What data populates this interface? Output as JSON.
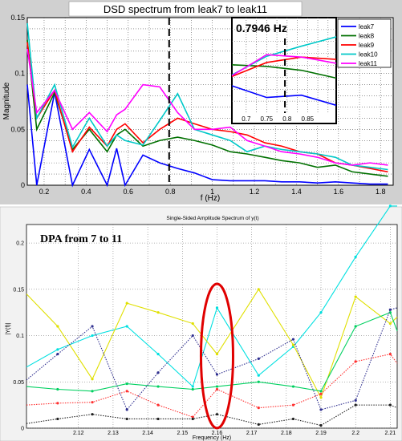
{
  "chart_data": [
    {
      "type": "line",
      "title": "DSD spectrum from leak7 to leak11",
      "xlabel": "f (Hz)",
      "ylabel": "Magnitude",
      "xlim": [
        0.12,
        1.86
      ],
      "ylim": [
        0,
        0.15
      ],
      "xticks": [
        "0.2",
        "0.4",
        "0.6",
        "0.8",
        "1",
        "1.2",
        "1.4",
        "1.6",
        "1.8"
      ],
      "yticks": [
        "0",
        "0.05",
        "0.1",
        "0.15"
      ],
      "grid": true,
      "legend": "top-right",
      "vline_x": 0.7946,
      "x": [
        0.12,
        0.165,
        0.25,
        0.335,
        0.415,
        0.5,
        0.545,
        0.585,
        0.67,
        0.75,
        0.835,
        0.915,
        1.0,
        1.085,
        1.165,
        1.25,
        1.33,
        1.415,
        1.5,
        1.585,
        1.665,
        1.75,
        1.835
      ],
      "series": [
        {
          "name": "leak7",
          "color": "#0000ff",
          "values": [
            0.09,
            0.0,
            0.083,
            0.0,
            0.032,
            0.0,
            0.033,
            0.0,
            0.027,
            0.02,
            0.015,
            0.011,
            0.005,
            0.004,
            0.004,
            0.004,
            0.003,
            0.003,
            0.002,
            0.003,
            0.002,
            0.001,
            0.001
          ]
        },
        {
          "name": "leak8",
          "color": "#007000",
          "values": [
            0.13,
            0.05,
            0.083,
            0.032,
            0.05,
            0.03,
            0.045,
            0.05,
            0.035,
            0.04,
            0.043,
            0.04,
            0.036,
            0.03,
            0.028,
            0.025,
            0.022,
            0.02,
            0.016,
            0.018,
            0.012,
            0.01,
            0.008
          ]
        },
        {
          "name": "leak9",
          "color": "#ff0000",
          "values": [
            0.128,
            0.06,
            0.085,
            0.03,
            0.052,
            0.035,
            0.05,
            0.055,
            0.038,
            0.05,
            0.06,
            0.055,
            0.05,
            0.048,
            0.045,
            0.038,
            0.035,
            0.03,
            0.028,
            0.02,
            0.018,
            0.015,
            0.012
          ]
        },
        {
          "name": "leak10",
          "color": "#00c8c8",
          "values": [
            0.145,
            0.06,
            0.09,
            0.034,
            0.06,
            0.035,
            0.045,
            0.04,
            0.036,
            0.058,
            0.082,
            0.05,
            0.045,
            0.04,
            0.03,
            0.035,
            0.032,
            0.03,
            0.028,
            0.025,
            0.018,
            0.016,
            0.014
          ]
        },
        {
          "name": "leak11",
          "color": "#ff00ff",
          "values": [
            0.122,
            0.065,
            0.085,
            0.05,
            0.065,
            0.048,
            0.063,
            0.068,
            0.09,
            0.088,
            0.065,
            0.05,
            0.05,
            0.052,
            0.04,
            0.035,
            0.03,
            0.028,
            0.025,
            0.02,
            0.018,
            0.02,
            0.018
          ]
        }
      ],
      "inset": {
        "label": "0.7946 Hz",
        "xlim": [
          0.665,
          0.92
        ],
        "xticks": [
          "0.7",
          "0.75",
          "0.8",
          "0.85"
        ],
        "vline_x": 0.7946,
        "x": [
          0.665,
          0.75,
          0.835,
          0.92
        ],
        "series": [
          {
            "name": "leak7",
            "color": "#0000ff",
            "values": [
              0.35,
              0.2,
              0.23,
              0.1
            ]
          },
          {
            "name": "leak8",
            "color": "#007000",
            "values": [
              0.62,
              0.6,
              0.55,
              0.45
            ]
          },
          {
            "name": "leak9",
            "color": "#ff0000",
            "values": [
              0.47,
              0.65,
              0.72,
              0.69
            ]
          },
          {
            "name": "leak10",
            "color": "#00c8c8",
            "values": [
              0.49,
              0.73,
              0.86,
              0.98
            ]
          },
          {
            "name": "leak11",
            "color": "#ff00ff",
            "values": [
              0.48,
              0.75,
              0.72,
              0.64
            ]
          }
        ]
      }
    },
    {
      "type": "line",
      "title": "Single-Sided Amplitude Spectrum of y(t)",
      "xlabel": "Frequency (Hz)",
      "ylabel": "|Y(f)|",
      "annotation": "DPA from 7 to 11",
      "xlim": [
        2.105,
        2.212
      ],
      "ylim": [
        0,
        0.22
      ],
      "xticks": [
        "2.12",
        "2.13",
        "2.14",
        "2.15",
        "2.16",
        "2.17",
        "2.18",
        "2.19",
        "2.2",
        "2.21"
      ],
      "yticks": [
        "0",
        "0.05",
        "0.1",
        "0.15",
        "0.2"
      ],
      "grid": true,
      "highlight_x": 2.16,
      "x": [
        2.105,
        2.114,
        2.124,
        2.134,
        2.143,
        2.153,
        2.16,
        2.172,
        2.182,
        2.19,
        2.2,
        2.21,
        2.212
      ],
      "series": [
        {
          "color": "#00e0e0",
          "values": [
            0.066,
            0.085,
            0.1,
            0.11,
            0.08,
            0.045,
            0.13,
            0.057,
            0.088,
            0.125,
            0.185,
            0.24,
            0.24
          ]
        },
        {
          "color": "#e0e000",
          "values": [
            0.145,
            0.11,
            0.053,
            0.135,
            0.125,
            0.113,
            0.08,
            0.15,
            0.09,
            0.033,
            0.142,
            0.113,
            0.12
          ]
        },
        {
          "color": "#00d060",
          "values": [
            0.045,
            0.042,
            0.04,
            0.048,
            0.045,
            0.042,
            0.045,
            0.05,
            0.045,
            0.04,
            0.11,
            0.125,
            0.105
          ]
        },
        {
          "color": "#ff3030",
          "values": [
            0.025,
            0.027,
            0.028,
            0.04,
            0.025,
            0.012,
            0.042,
            0.022,
            0.025,
            0.037,
            0.072,
            0.08,
            0.07
          ]
        },
        {
          "color": "#303090",
          "values": [
            0.052,
            0.08,
            0.11,
            0.02,
            0.06,
            0.1,
            0.058,
            0.075,
            0.096,
            0.02,
            0.03,
            0.128,
            0.13
          ]
        },
        {
          "color": "#202020",
          "values": [
            0.005,
            0.01,
            0.015,
            0.01,
            0.01,
            0.01,
            0.015,
            0.004,
            0.01,
            0.003,
            0.025,
            0.025,
            0.022
          ]
        }
      ]
    }
  ]
}
